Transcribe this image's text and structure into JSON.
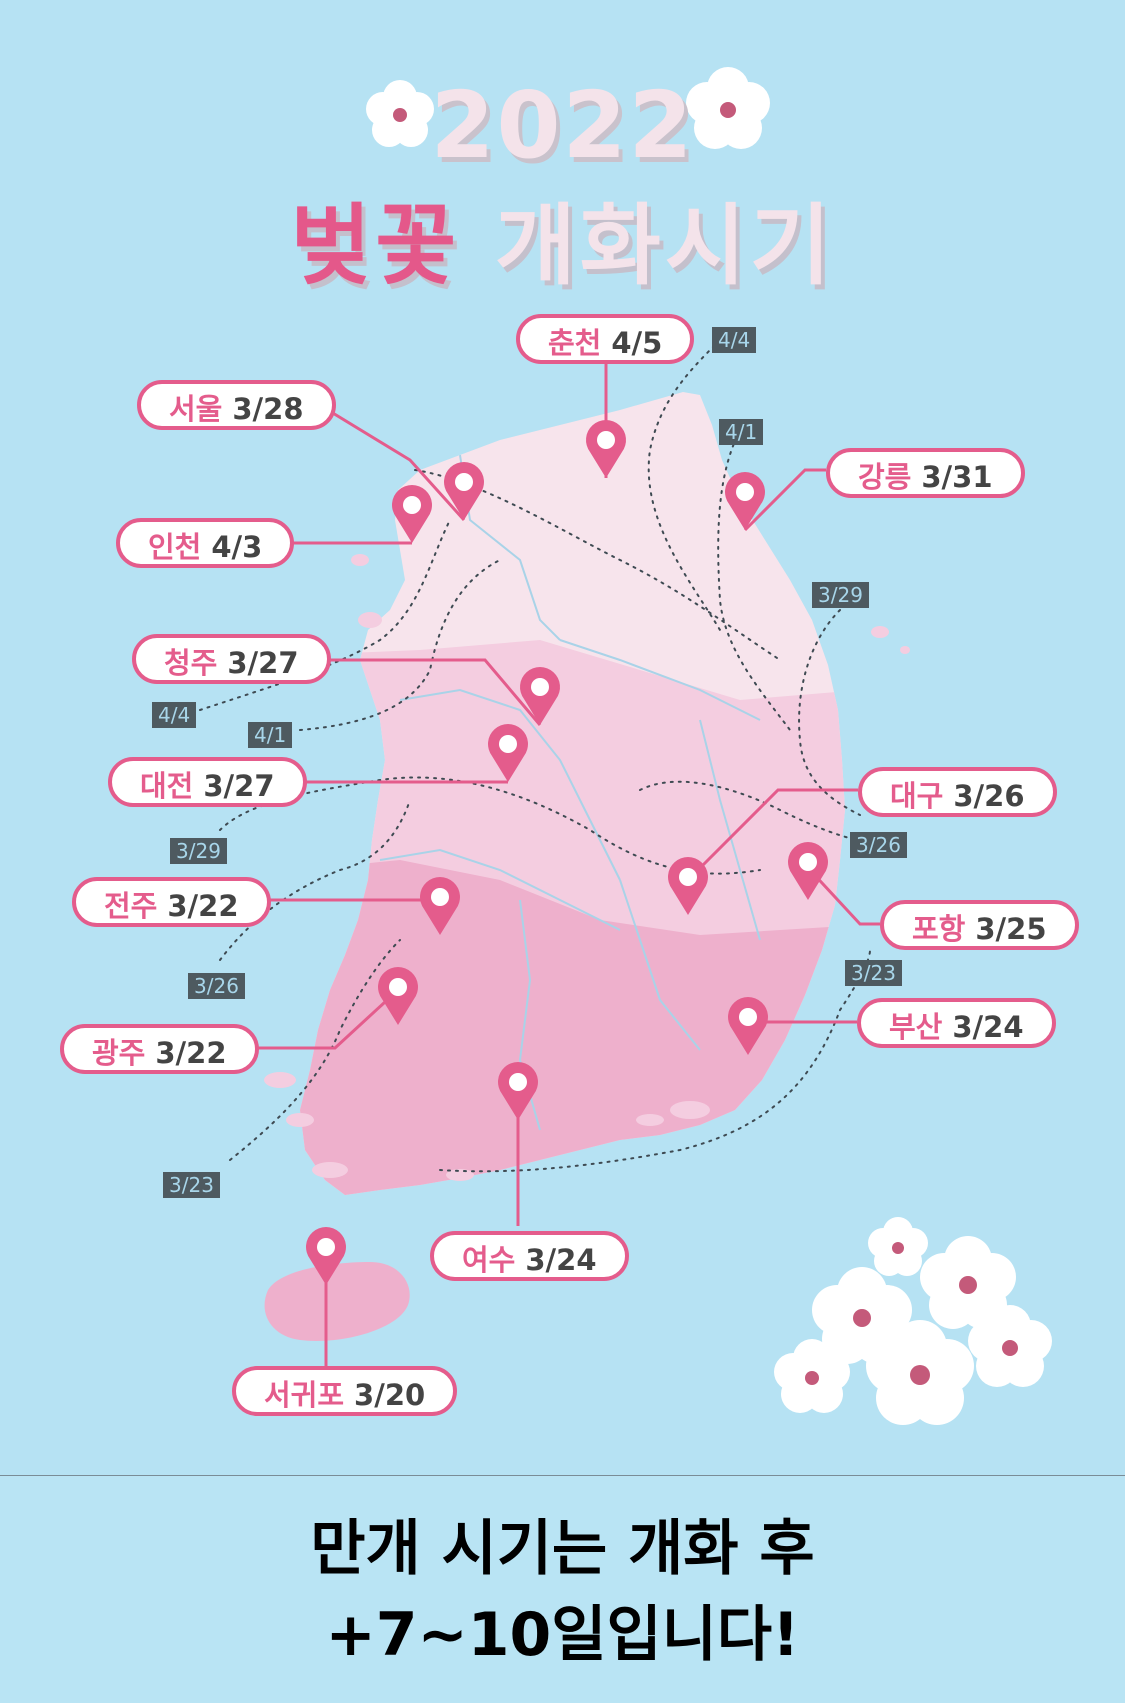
{
  "title": {
    "year": "2022",
    "highlight": "벚꽃",
    "rest": "개화시기"
  },
  "cities": [
    {
      "name": "춘천",
      "date": "4/5"
    },
    {
      "name": "서울",
      "date": "3/28"
    },
    {
      "name": "강릉",
      "date": "3/31"
    },
    {
      "name": "인천",
      "date": "4/3"
    },
    {
      "name": "청주",
      "date": "3/27"
    },
    {
      "name": "대전",
      "date": "3/27"
    },
    {
      "name": "대구",
      "date": "3/26"
    },
    {
      "name": "전주",
      "date": "3/22"
    },
    {
      "name": "포항",
      "date": "3/25"
    },
    {
      "name": "부산",
      "date": "3/24"
    },
    {
      "name": "광주",
      "date": "3/22"
    },
    {
      "name": "여수",
      "date": "3/24"
    },
    {
      "name": "서귀포",
      "date": "3/20"
    }
  ],
  "isolines": [
    "4/4",
    "4/1",
    "3/29",
    "4/4",
    "4/1",
    "3/29",
    "3/26",
    "3/26",
    "3/23",
    "3/23"
  ],
  "colors": {
    "pin": "#e45c8c",
    "label_border": "#e45c8c",
    "region_north": "#f7e4ec",
    "region_mid": "#f4cde0",
    "region_south": "#eeb0cc"
  },
  "caption": {
    "line1": "만개 시기는 개화 후",
    "line2": "+7~10일입니다!"
  }
}
